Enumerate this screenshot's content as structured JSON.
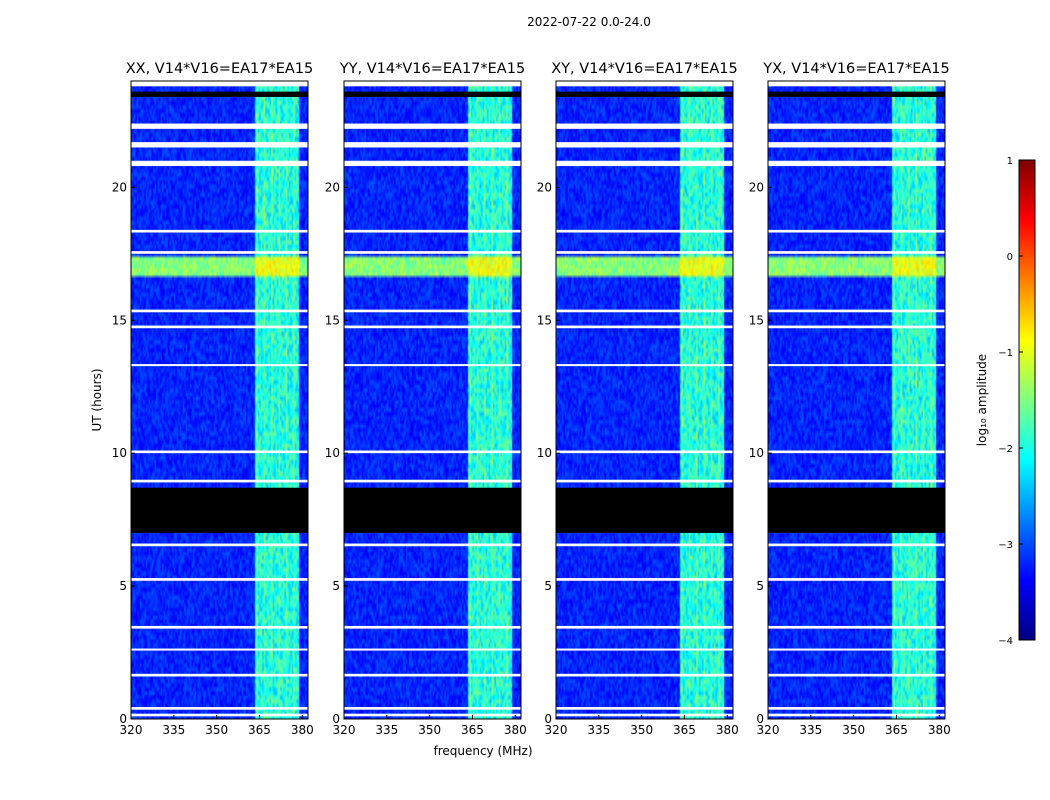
{
  "figure": {
    "suptitle": "2022-07-22 0.0-24.0"
  },
  "chart_data": {
    "type": "heatmap",
    "title": "2022-07-22 0.0-24.0",
    "xlabel": "frequency (MHz)",
    "ylabel": "UT (hours)",
    "xlim": [
      320,
      382
    ],
    "ylim": [
      0,
      24
    ],
    "xticks": [
      320,
      335,
      350,
      365,
      380
    ],
    "yticks": [
      0,
      5,
      10,
      15,
      20
    ],
    "panels": [
      {
        "title": "XX, V14*V16=EA17*EA15"
      },
      {
        "title": "YY, V14*V16=EA17*EA15"
      },
      {
        "title": "XY, V14*V16=EA17*EA15"
      },
      {
        "title": "YX, V14*V16=EA17*EA15"
      }
    ],
    "colorbar": {
      "label": "log₁₀ amplitude",
      "range": [
        -4,
        1
      ],
      "ticks": [
        1,
        0,
        -1,
        -2,
        -3,
        -4
      ],
      "tick_labels": [
        "1",
        "0",
        "−1",
        "−2",
        "−3",
        "−4"
      ],
      "colormap": [
        "#00007f",
        "#0000ff",
        "#007fff",
        "#00ffff",
        "#7fff7f",
        "#ffff00",
        "#ff7f00",
        "#ff0000",
        "#7f0000"
      ]
    },
    "background_level": -3.2,
    "rfi_band_mhz": [
      363.5,
      379
    ],
    "rfi_band_level": -2.0,
    "enhanced_band_ut": [
      16.6,
      17.4
    ],
    "enhanced_level": -1.6,
    "flagged_ut_ranges": [
      [
        0.1,
        0.2
      ],
      [
        0.35,
        0.45
      ],
      [
        1.6,
        1.7
      ],
      [
        2.6,
        2.65
      ],
      [
        3.4,
        3.5
      ],
      [
        5.2,
        5.3
      ],
      [
        6.5,
        6.6
      ],
      [
        8.9,
        9.0
      ],
      [
        10.0,
        10.1
      ],
      [
        13.3,
        13.35
      ],
      [
        14.7,
        14.8
      ],
      [
        15.3,
        15.4
      ],
      [
        17.5,
        17.6
      ],
      [
        18.3,
        18.4
      ],
      [
        20.8,
        21.0
      ],
      [
        21.5,
        21.7
      ],
      [
        22.2,
        22.4
      ],
      [
        23.8,
        24.0
      ]
    ],
    "no_data_ut_ranges": [
      [
        7.0,
        8.7
      ],
      [
        23.4,
        23.6
      ]
    ]
  }
}
